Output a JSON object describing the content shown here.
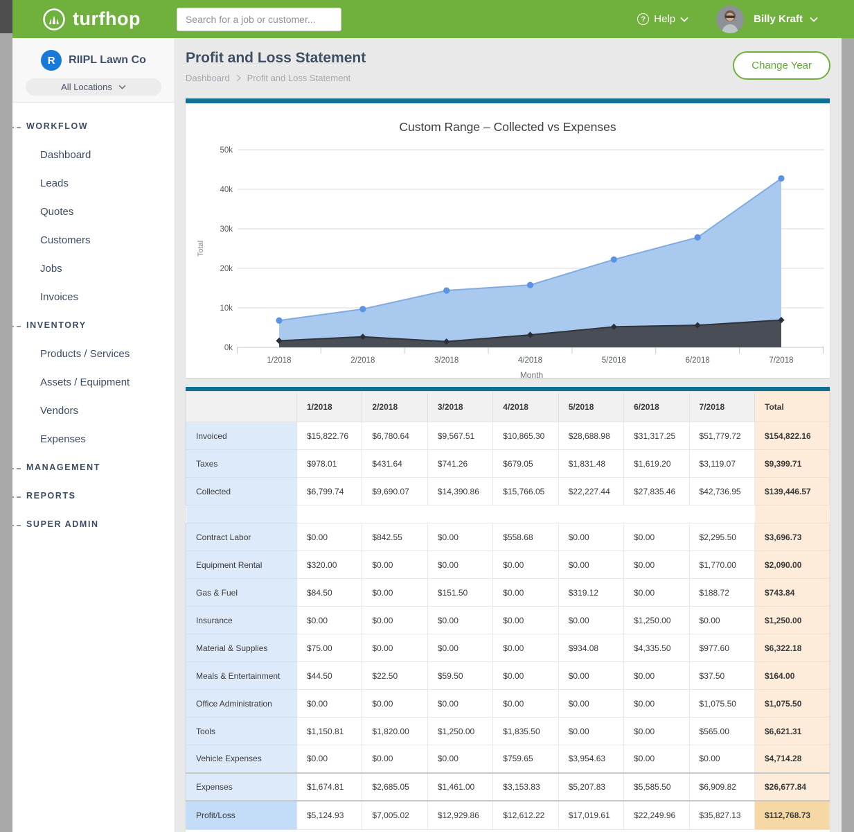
{
  "colors": {
    "brand_green": "#6fb13c",
    "accent_teal": "#116f93",
    "company_badge_blue": "#1879d9",
    "chart_blue_fill": "#a9c9ef",
    "chart_blue_line": "#82abe0",
    "chart_blue_marker": "#5b93e0",
    "chart_dark_fill": "#484d56",
    "chart_dark_line": "#2f333a",
    "chart_dark_marker": "#2b2f36"
  },
  "topbar": {
    "brand": "turfhop",
    "search_placeholder": "Search for a job or customer...",
    "help_icon_glyph": "?",
    "help_label": "Help",
    "user_name": "Billy Kraft"
  },
  "sidebar": {
    "company_name": "RIIPL Lawn Co",
    "company_initial": "R",
    "location_selector": "All Locations",
    "sections": [
      {
        "label": "WORKFLOW",
        "items": [
          "Dashboard",
          "Leads",
          "Quotes",
          "Customers",
          "Jobs",
          "Invoices"
        ]
      },
      {
        "label": "INVENTORY",
        "items": [
          "Products / Services",
          "Assets / Equipment",
          "Vendors",
          "Expenses"
        ]
      },
      {
        "label": "MANAGEMENT",
        "items": []
      },
      {
        "label": "REPORTS",
        "items": []
      },
      {
        "label": "SUPER ADMIN",
        "items": []
      }
    ]
  },
  "page_header": {
    "title": "Profit and Loss Statement",
    "breadcrumb": [
      "Dashboard",
      "Profit and Loss Statement"
    ],
    "change_year_button": "Change Year"
  },
  "chart_data": {
    "type": "area",
    "title": "Custom Range – Collected vs Expenses",
    "xlabel": "Month",
    "ylabel": "Total",
    "categories": [
      "1/2018",
      "2/2018",
      "3/2018",
      "4/2018",
      "5/2018",
      "6/2018",
      "7/2018"
    ],
    "series": [
      {
        "name": "Collected",
        "values": [
          6799.74,
          9690.07,
          14390.86,
          15766.05,
          22227.44,
          27835.46,
          42736.95
        ]
      },
      {
        "name": "Expenses",
        "values": [
          1674.81,
          2685.05,
          1461.0,
          3153.83,
          5207.83,
          5585.5,
          6909.82
        ]
      }
    ],
    "ylim": [
      0,
      50000
    ],
    "yticks": [
      "0k",
      "10k",
      "20k",
      "30k",
      "40k",
      "50k"
    ],
    "grid": true,
    "legend": "none"
  },
  "pl_table": {
    "columns": [
      "",
      "1/2018",
      "2/2018",
      "3/2018",
      "4/2018",
      "5/2018",
      "6/2018",
      "7/2018",
      "Total"
    ],
    "income_rows": [
      {
        "label": "Invoiced",
        "values": [
          "$15,822.76",
          "$6,780.64",
          "$9,567.51",
          "$10,865.30",
          "$28,688.98",
          "$31,317.25",
          "$51,779.72"
        ],
        "total": "$154,822.16"
      },
      {
        "label": "Taxes",
        "values": [
          "$978.01",
          "$431.64",
          "$741.26",
          "$679.05",
          "$1,831.48",
          "$1,619.20",
          "$3,119.07"
        ],
        "total": "$9,399.71"
      },
      {
        "label": "Collected",
        "values": [
          "$6,799.74",
          "$9,690.07",
          "$14,390.86",
          "$15,766.05",
          "$22,227.44",
          "$27,835.46",
          "$42,736.95"
        ],
        "total": "$139,446.57"
      }
    ],
    "expense_rows": [
      {
        "label": "Contract Labor",
        "values": [
          "$0.00",
          "$842.55",
          "$0.00",
          "$558.68",
          "$0.00",
          "$0.00",
          "$2,295.50"
        ],
        "total": "$3,696.73"
      },
      {
        "label": "Equipment Rental",
        "values": [
          "$320.00",
          "$0.00",
          "$0.00",
          "$0.00",
          "$0.00",
          "$0.00",
          "$1,770.00"
        ],
        "total": "$2,090.00"
      },
      {
        "label": "Gas & Fuel",
        "values": [
          "$84.50",
          "$0.00",
          "$151.50",
          "$0.00",
          "$319.12",
          "$0.00",
          "$188.72"
        ],
        "total": "$743.84"
      },
      {
        "label": "Insurance",
        "values": [
          "$0.00",
          "$0.00",
          "$0.00",
          "$0.00",
          "$0.00",
          "$1,250.00",
          "$0.00"
        ],
        "total": "$1,250.00"
      },
      {
        "label": "Material & Supplies",
        "values": [
          "$75.00",
          "$0.00",
          "$0.00",
          "$0.00",
          "$934.08",
          "$4,335.50",
          "$977.60"
        ],
        "total": "$6,322.18"
      },
      {
        "label": "Meals & Entertainment",
        "values": [
          "$44.50",
          "$22.50",
          "$59.50",
          "$0.00",
          "$0.00",
          "$0.00",
          "$37.50"
        ],
        "total": "$164.00"
      },
      {
        "label": "Office Administration",
        "values": [
          "$0.00",
          "$0.00",
          "$0.00",
          "$0.00",
          "$0.00",
          "$0.00",
          "$1,075.50"
        ],
        "total": "$1,075.50"
      },
      {
        "label": "Tools",
        "values": [
          "$1,150.81",
          "$1,820.00",
          "$1,250.00",
          "$1,835.50",
          "$0.00",
          "$0.00",
          "$565.00"
        ],
        "total": "$6,621.31"
      },
      {
        "label": "Vehicle Expenses",
        "values": [
          "$0.00",
          "$0.00",
          "$0.00",
          "$759.65",
          "$3,954.63",
          "$0.00",
          "$0.00"
        ],
        "total": "$4,714.28"
      }
    ],
    "expenses_summary": {
      "label": "Expenses",
      "values": [
        "$1,674.81",
        "$2,685.05",
        "$1,461.00",
        "$3,153.83",
        "$5,207.83",
        "$5,585.50",
        "$6,909.82"
      ],
      "total": "$26,677.84"
    },
    "profit_loss": {
      "label": "Profit/Loss",
      "values": [
        "$5,124.93",
        "$7,005.02",
        "$12,929.86",
        "$12,612.22",
        "$17,019.61",
        "$22,249.96",
        "$35,827.13"
      ],
      "total": "$112,768.73"
    }
  }
}
